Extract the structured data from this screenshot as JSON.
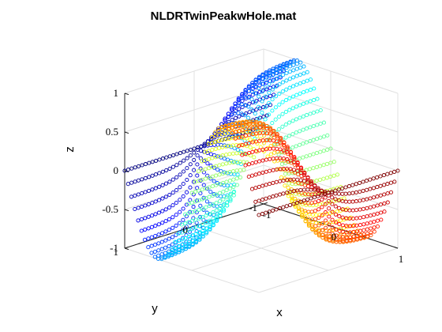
{
  "window": {
    "title": ""
  },
  "chart_data": {
    "type": "scatter",
    "title": "NLDRTwinPeakwHole.mat",
    "xlabel": "x",
    "ylabel": "y",
    "zlabel": "z",
    "xlim": [
      -1,
      1
    ],
    "ylim": [
      -1,
      1
    ],
    "zlim": [
      -1,
      1
    ],
    "xticks": [
      "-1",
      "0",
      "1"
    ],
    "yticks": [
      "-1",
      "0",
      "1"
    ],
    "zticks": [
      "-1",
      "-0.5",
      "0",
      "0.5",
      "1"
    ],
    "surface": "z = sin(pi*x) * tanh(3*y), sampled on a 41 x 41 grid over [-1,1] x [-1,1], hole removed for x^2 + y^2 < 0.08",
    "grid": {
      "x_count": 41,
      "y_count": 41,
      "hole_radius_sq": 0.08
    },
    "colormap": "jet",
    "color_by": "x",
    "marker": "open circle",
    "grid_on": true,
    "view": "3d isometric"
  }
}
